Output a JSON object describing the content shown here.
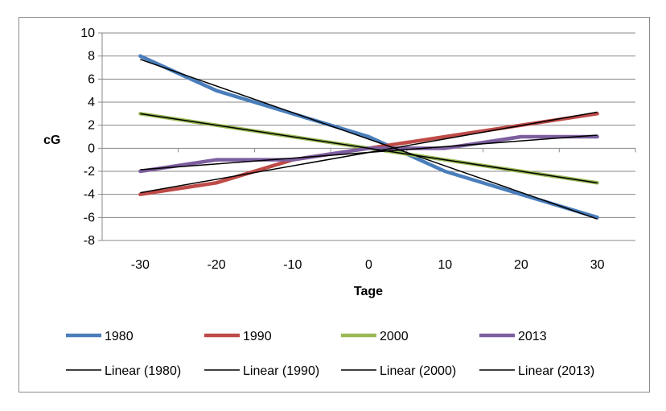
{
  "chart_data": {
    "type": "line",
    "xlabel": "Tage",
    "ylabel": "cG",
    "x": [
      -30,
      -20,
      -10,
      0,
      10,
      20,
      30
    ],
    "xticks": [
      "-30",
      "-20",
      "-10",
      "0",
      "10",
      "20",
      "30"
    ],
    "yticks": [
      "10",
      "8",
      "6",
      "4",
      "2",
      "0",
      "-2",
      "-4",
      "-6",
      "-8"
    ],
    "ylim": [
      -8,
      10
    ],
    "xlim": [
      -35,
      35
    ],
    "grid": "horizontal",
    "legend_position": "bottom",
    "series": [
      {
        "name": "1980",
        "color": "#4a7ebb",
        "values": [
          8,
          5,
          3,
          1,
          -2,
          -4,
          -6
        ]
      },
      {
        "name": "1990",
        "color": "#be4b48",
        "values": [
          -4,
          -3,
          -1,
          0,
          1,
          2,
          3
        ]
      },
      {
        "name": "2000",
        "color": "#98b954",
        "values": [
          3,
          2,
          1,
          0,
          -1,
          -2,
          -3
        ]
      },
      {
        "name": "2013",
        "color": "#7d5fa0",
        "values": [
          -2,
          -1,
          -1,
          0,
          0,
          1,
          1
        ]
      }
    ],
    "trendlines": [
      {
        "name": "Linear (1980)",
        "color": "#000000",
        "y_at_xmin": 7.71,
        "y_at_xmax": -6.14
      },
      {
        "name": "Linear (1990)",
        "color": "#000000",
        "y_at_xmin": -3.86,
        "y_at_xmax": 3.14
      },
      {
        "name": "Linear (2000)",
        "color": "#000000",
        "y_at_xmin": 3.0,
        "y_at_xmax": -3.0
      },
      {
        "name": "Linear (2013)",
        "color": "#000000",
        "y_at_xmin": -1.86,
        "y_at_xmax": 1.14
      }
    ]
  }
}
